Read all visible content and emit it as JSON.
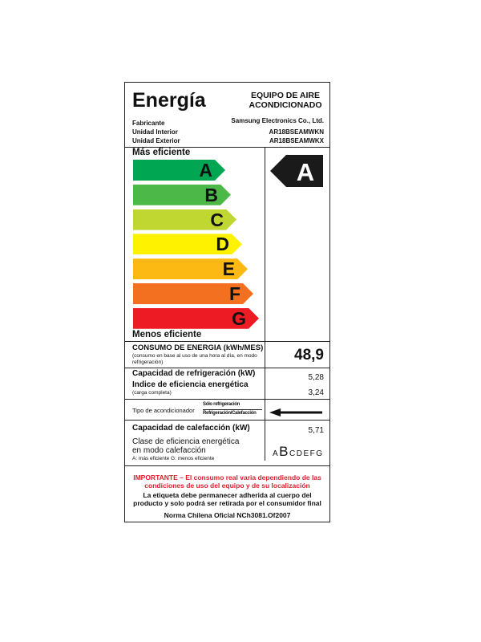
{
  "header": {
    "title": "Energía",
    "equipment": "EQUIPO DE AIRE ACONDICIONADO",
    "fabricante_label": "Fabricante",
    "fabricante": "Samsung Electronics Co., Ltd.",
    "interior_label": "Unidad Interior",
    "interior": "AR18BSEAMWKN",
    "exterior_label": "Unidad Exterior",
    "exterior": "AR18BSEAMWKX"
  },
  "scale": {
    "top_label": "Más eficiente",
    "bottom_label": "Menos eficiente",
    "classes": [
      {
        "letter": "A",
        "color": "#00a651"
      },
      {
        "letter": "B",
        "color": "#4cb848"
      },
      {
        "letter": "C",
        "color": "#bfd730"
      },
      {
        "letter": "D",
        "color": "#fff200"
      },
      {
        "letter": "E",
        "color": "#fdb913"
      },
      {
        "letter": "F",
        "color": "#f37021"
      },
      {
        "letter": "G",
        "color": "#ed1c24"
      }
    ],
    "rating": "A"
  },
  "consumo": {
    "label": "CONSUMO DE ENERGIA (kWh/MES)",
    "note": "(consumo en base al uso de una hora al día, en modo refrigeración)",
    "value": "48,9"
  },
  "refrigeracion": {
    "capacity_label": "Capacidad de refrigeración (kW)",
    "capacity": "5,28",
    "index_label": "Indice de eficiencia energética",
    "index_note": "(carga completa)",
    "index": "3,24"
  },
  "tipo": {
    "label": "Tipo de acondicionador",
    "option1": "Sólo refrigeración",
    "option2": "Refrigeración/Calefacción",
    "selected": "Refrigeración/Calefacción"
  },
  "calefaccion": {
    "capacity_label": "Capacidad de calefacción (kW)",
    "capacity": "5,71",
    "class_label_1": "Clase de eficiencia energética",
    "class_label_2": "en modo calefacción",
    "class_note": "A: más eficiente  G: menos eficiente",
    "classes": [
      "A",
      "B",
      "C",
      "D",
      "E",
      "F",
      "G"
    ],
    "selected": "B"
  },
  "footer": {
    "important": "IMPORTANTE – El consumo real varia dependiendo de las condiciones de uso del equipo y de su localización",
    "notice": "La etiqueta debe permanecer adherida al cuerpo del producto y solo podrá ser retirada por el consumidor final",
    "norma": "Norma Chilena Oficial NCh3081.Of2007"
  }
}
